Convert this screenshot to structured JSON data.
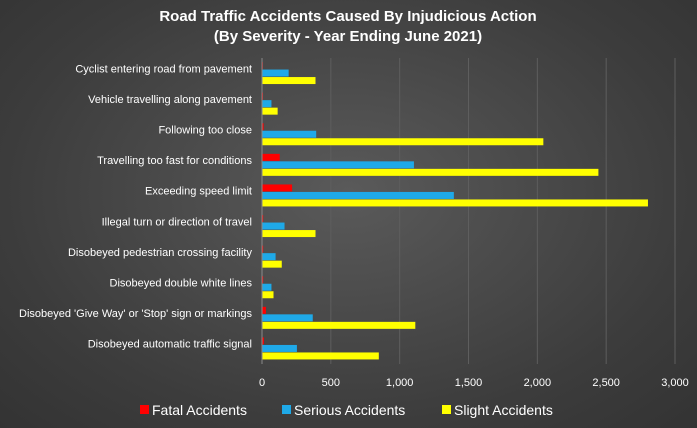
{
  "chart_data": {
    "type": "bar",
    "orientation": "horizontal",
    "title": "Road Traffic Accidents Caused By Injudicious Action",
    "subtitle": "(By Severity - Year Ending June 2021)",
    "categories": [
      "Cyclist entering road from pavement",
      "Vehicle travelling along pavement",
      "Following too close",
      "Travelling too fast for conditions",
      "Exceeding speed limit",
      "Illegal turn or direction of travel",
      "Disobeyed pedestrian crossing facility",
      "Disobeyed double white lines",
      "Disobeyed 'Give Way' or 'Stop' sign or markings",
      "Disobeyed automatic traffic signal"
    ],
    "series": [
      {
        "name": "Fatal Accidents",
        "color": "#ff0000",
        "values": [
          2,
          3,
          8,
          125,
          215,
          5,
          5,
          5,
          25,
          10
        ]
      },
      {
        "name": "Serious Accidents",
        "color": "#1fa9e8",
        "values": [
          190,
          65,
          390,
          1100,
          1390,
          160,
          95,
          65,
          365,
          250
        ]
      },
      {
        "name": "Slight Accidents",
        "color": "#ffff00",
        "values": [
          385,
          110,
          2040,
          2440,
          2800,
          385,
          140,
          80,
          1110,
          845
        ]
      }
    ],
    "xlim": [
      0,
      3000
    ],
    "xticks": [
      0,
      500,
      1000,
      1500,
      2000,
      2500,
      3000
    ],
    "xtick_labels": [
      "0",
      "500",
      "1,000",
      "1,500",
      "2,000",
      "2,500",
      "3,000"
    ],
    "grid": true,
    "legend_position": "bottom"
  }
}
